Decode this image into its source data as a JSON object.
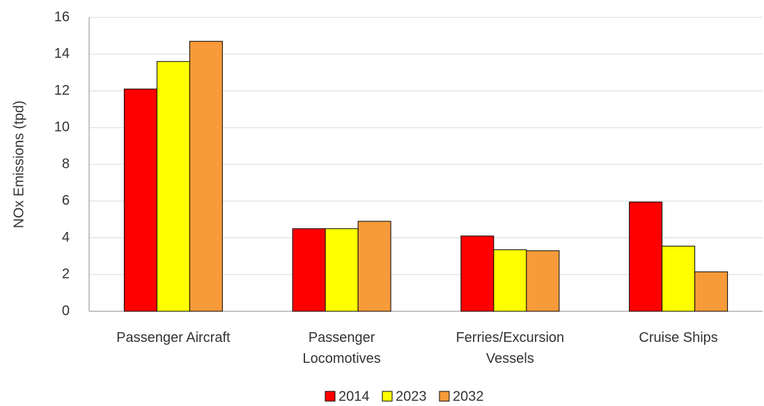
{
  "chart_data": {
    "type": "bar",
    "y_label": "NOx Emissions (tpd)",
    "categories": [
      "Passenger Aircraft",
      "Passenger\nLocomotives",
      "Ferries/Excursion\nVessels",
      "Cruise Ships"
    ],
    "series": [
      {
        "name": "2014",
        "color": "#ff0000",
        "values": [
          12.1,
          4.5,
          4.1,
          5.95
        ]
      },
      {
        "name": "2023",
        "color": "#ffff00",
        "values": [
          13.6,
          4.5,
          3.35,
          3.55
        ]
      },
      {
        "name": "2032",
        "color": "#f79a3a",
        "values": [
          14.7,
          4.9,
          3.3,
          2.15
        ]
      }
    ],
    "ylim": [
      0,
      16
    ],
    "yticks": [
      0,
      2,
      4,
      6,
      8,
      10,
      12,
      14,
      16
    ],
    "grid": true,
    "legend": "bottom"
  }
}
